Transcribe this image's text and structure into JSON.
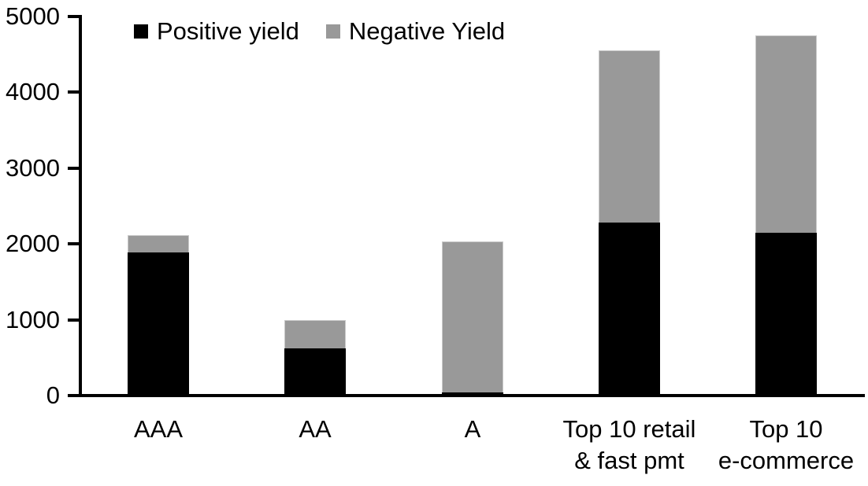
{
  "chart_data": {
    "type": "bar",
    "stacked": true,
    "title": "",
    "categories": [
      "AAA",
      "AA",
      "A",
      "Top 10 retail\n& fast pmt",
      "Top 10\ne-commerce"
    ],
    "series": [
      {
        "name": "Positive yield",
        "color": "#000000",
        "values": [
          1890,
          625,
          45,
          2280,
          2145
        ]
      },
      {
        "name": "Negative Yield",
        "color": "#999999",
        "values": [
          230,
          375,
          1985,
          2270,
          2605
        ]
      }
    ],
    "stacked_totals": [
      2120,
      1000,
      2030,
      4550,
      4750
    ],
    "xlabel": "",
    "ylabel": "",
    "ylim": [
      0,
      5000
    ],
    "yticks": [
      0,
      1000,
      2000,
      3000,
      4000,
      5000
    ],
    "grid": false,
    "legend_position": "top-inside"
  },
  "legend": {
    "items": [
      {
        "label": "Positive yield",
        "color": "#000000"
      },
      {
        "label": "Negative Yield",
        "color": "#999999"
      }
    ]
  },
  "colors": {
    "positive": "#000000",
    "negative": "#999999",
    "axis": "#000000",
    "background": "#ffffff"
  }
}
